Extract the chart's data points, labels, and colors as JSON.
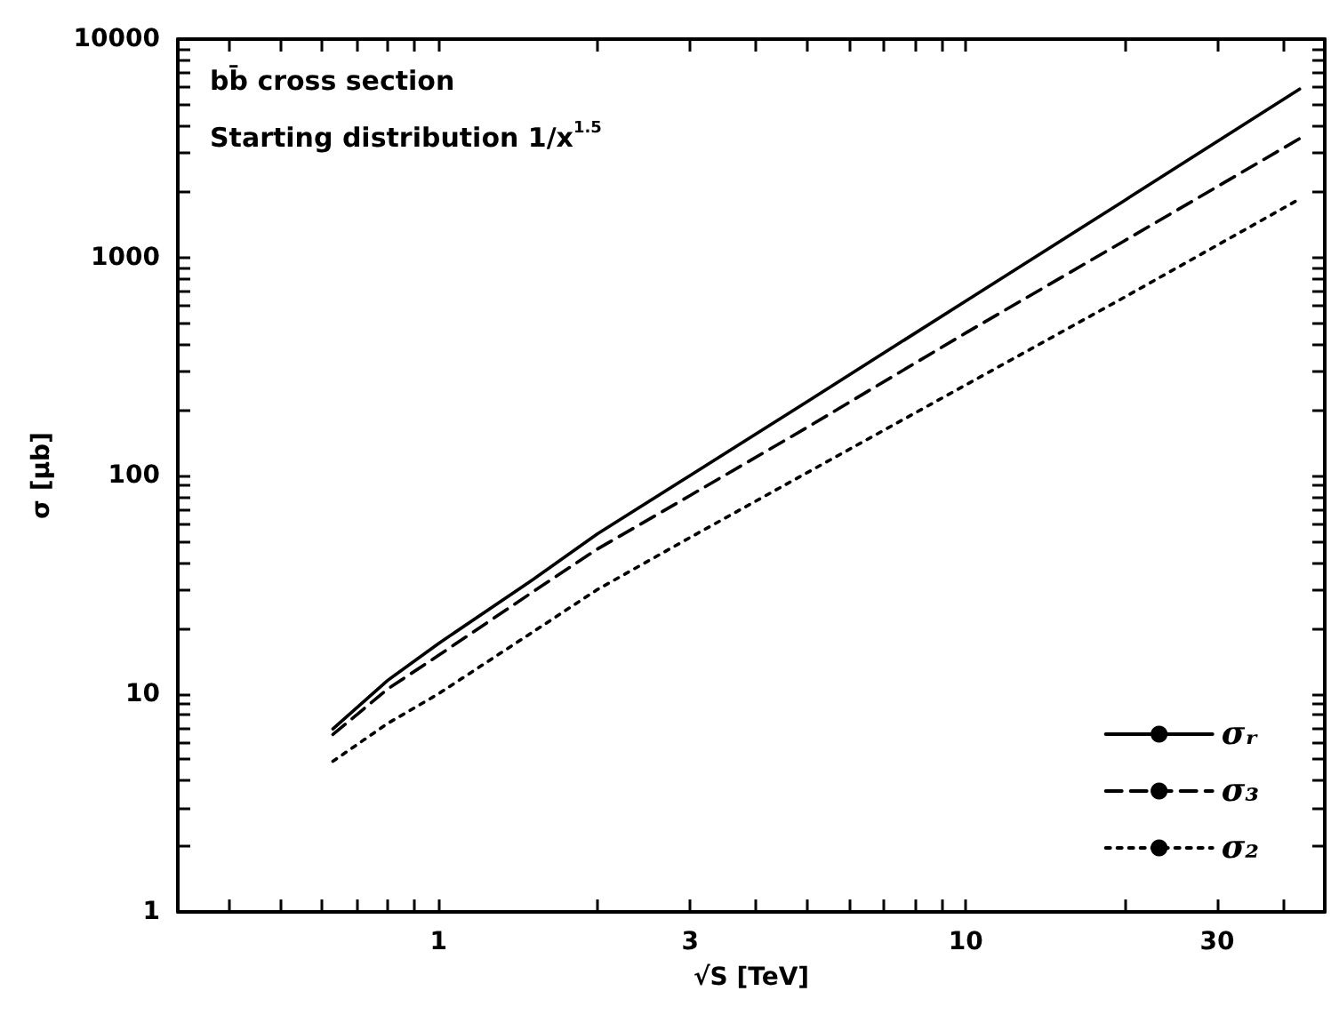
{
  "chart_data": {
    "type": "line",
    "xlabel": "√S [TeV]",
    "ylabel": "σ [μb]",
    "annotations": [
      "bb̄ cross section",
      "Starting distribution 1/x$^{1.5}$"
    ],
    "log": "xy",
    "grid": false,
    "legend": "bottom right",
    "marker": "none",
    "xlim": [
      0.32,
      48
    ],
    "ylim": [
      1,
      10000
    ],
    "xticks": [
      {
        "value": 0.4,
        "label": null
      },
      {
        "value": 0.5,
        "label": null
      },
      {
        "value": 0.6,
        "label": null
      },
      {
        "value": 0.7,
        "label": null
      },
      {
        "value": 0.8,
        "label": null
      },
      {
        "value": 0.9,
        "label": null
      },
      1,
      {
        "value": 2,
        "label": null
      },
      3,
      {
        "value": 4,
        "label": null
      },
      {
        "value": 5,
        "label": null
      },
      {
        "value": 6,
        "label": null
      },
      {
        "value": 7,
        "label": null
      },
      {
        "value": 8,
        "label": null
      },
      {
        "value": 9,
        "label": null
      },
      10,
      {
        "value": 20,
        "label": null
      },
      30,
      {
        "value": 40,
        "label": null
      }
    ],
    "yticks": [
      1,
      {
        "value": 2,
        "label": null
      },
      {
        "value": 3,
        "label": null
      },
      {
        "value": 4,
        "label": null
      },
      {
        "value": 5,
        "label": null
      },
      {
        "value": 6,
        "label": null
      },
      {
        "value": 7,
        "label": null
      },
      {
        "value": 8,
        "label": null
      },
      {
        "value": 9,
        "label": null
      },
      10,
      {
        "value": 20,
        "label": null
      },
      {
        "value": 30,
        "label": null
      },
      {
        "value": 40,
        "label": null
      },
      {
        "value": 50,
        "label": null
      },
      {
        "value": 60,
        "label": null
      },
      {
        "value": 70,
        "label": null
      },
      {
        "value": 80,
        "label": null
      },
      {
        "value": 90,
        "label": null
      },
      100,
      {
        "value": 200,
        "label": null
      },
      {
        "value": 300,
        "label": null
      },
      {
        "value": 400,
        "label": null
      },
      {
        "value": 500,
        "label": null
      },
      {
        "value": 600,
        "label": null
      },
      {
        "value": 700,
        "label": null
      },
      {
        "value": 800,
        "label": null
      },
      {
        "value": 900,
        "label": null
      },
      1000,
      {
        "value": 2000,
        "label": null
      },
      {
        "value": 3000,
        "label": null
      },
      {
        "value": 4000,
        "label": null
      },
      {
        "value": 5000,
        "label": null
      },
      {
        "value": 6000,
        "label": null
      },
      {
        "value": 7000,
        "label": null
      },
      {
        "value": 8000,
        "label": null
      },
      {
        "value": 9000,
        "label": null
      },
      10000
    ],
    "x": [
      0.63,
      0.8,
      1,
      1.5,
      2,
      3,
      5,
      10,
      20,
      43
    ],
    "series": [
      {
        "name": "σᵣ",
        "color": "#000000",
        "line_style": "solid",
        "values": [
          6.9,
          11.5,
          17,
          33,
          54,
          100,
          218,
          630,
          1820,
          5900
        ]
      },
      {
        "name": "σ₃",
        "color": "#000000",
        "line_style": "dashed",
        "values": [
          6.5,
          10.5,
          15,
          29,
          46,
          81,
          166,
          450,
          1190,
          3500
        ]
      },
      {
        "name": "σ₂",
        "color": "#000000",
        "line_style": "dotted",
        "values": [
          4.9,
          7.3,
          10,
          19,
          30,
          52,
          103,
          260,
          656,
          1850
        ]
      }
    ]
  }
}
